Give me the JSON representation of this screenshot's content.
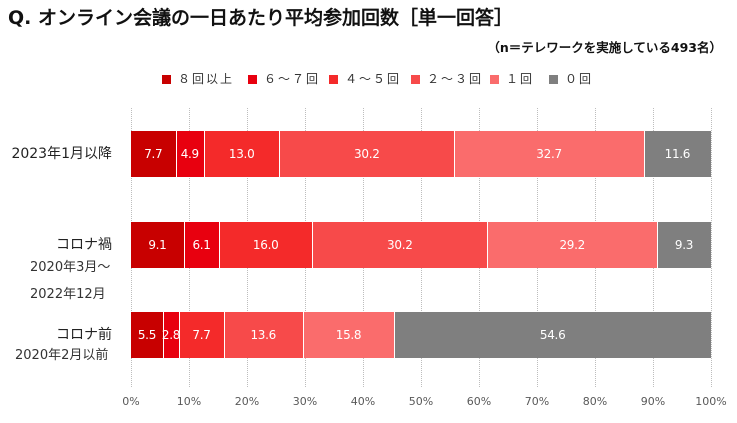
{
  "chart_data": {
    "type": "bar",
    "orientation": "horizontal",
    "stacked": true,
    "title": "Q. オンライン会議の一日あたり平均参加回数［単一回答］",
    "subtitle": "（n＝テレワークを実施している493名）",
    "categories": [
      "2023年1月以降",
      "コロナ禍",
      "コロナ前"
    ],
    "category_sublabels": [
      [],
      [
        "2020年3月～",
        "2022年12月"
      ],
      [
        "2020年2月以前"
      ]
    ],
    "series": [
      {
        "name": "８回以上",
        "color": "#c80000",
        "values": [
          7.7,
          9.1,
          5.5
        ],
        "value_labels": [
          "7.7",
          "9.1",
          "5.5"
        ]
      },
      {
        "name": "６～７回",
        "color": "#e8000f",
        "values": [
          4.9,
          6.1,
          2.8
        ],
        "value_labels": [
          "4.9",
          "6.1",
          "2.8"
        ]
      },
      {
        "name": "４～５回",
        "color": "#f42a2a",
        "values": [
          13.0,
          16.0,
          7.7
        ],
        "value_labels": [
          "13.0",
          "16.0",
          "7.7"
        ]
      },
      {
        "name": "２～３回",
        "color": "#f74a4a",
        "values": [
          30.2,
          30.2,
          13.6
        ],
        "value_labels": [
          "30.2",
          "30.2",
          "13.6"
        ]
      },
      {
        "name": "１回",
        "color": "#fa6c6c",
        "values": [
          32.7,
          29.2,
          15.8
        ],
        "value_labels": [
          "32.7",
          "29.2",
          "15.8"
        ]
      },
      {
        "name": "０回",
        "color": "#7f7f7f",
        "values": [
          11.6,
          9.3,
          54.6
        ],
        "value_labels": [
          "11.6",
          "9.3",
          "54.6"
        ]
      }
    ],
    "xlim": [
      0,
      100
    ],
    "xticks": [
      0,
      10,
      20,
      30,
      40,
      50,
      60,
      70,
      80,
      90,
      100
    ],
    "xtick_labels": [
      "0%",
      "10%",
      "20%",
      "30%",
      "40%",
      "50%",
      "60%",
      "70%",
      "80%",
      "90%",
      "100%"
    ],
    "value_label_color": "#ffffff",
    "legend_position": "top",
    "grid": true
  }
}
